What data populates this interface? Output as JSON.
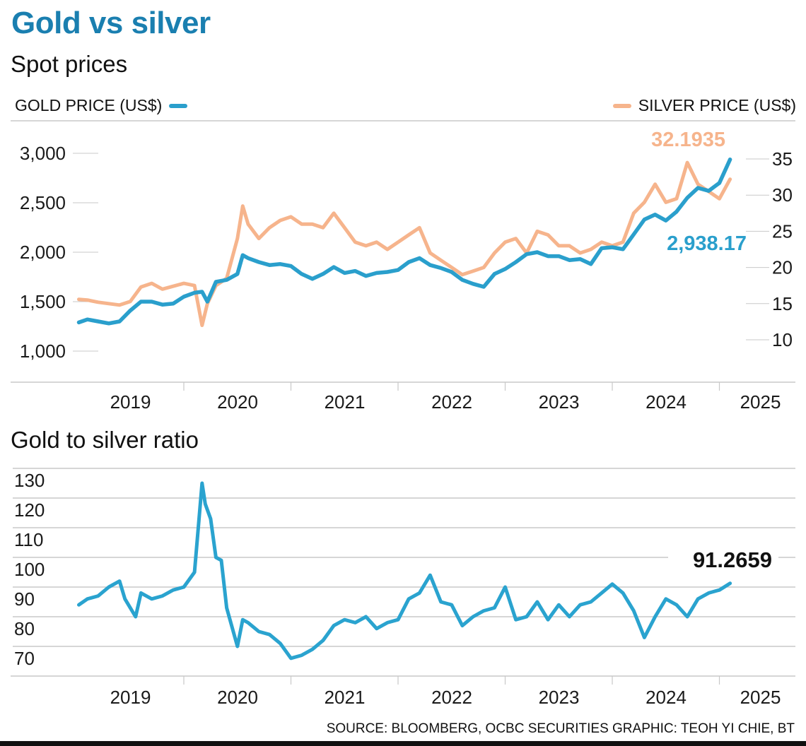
{
  "header": {
    "title": "Gold vs silver",
    "colors": {
      "title": "#1a7fb0",
      "gold": "#2a9fcc",
      "silver": "#f6b48c",
      "ratio": "#2aa3cf"
    }
  },
  "chart_data": [
    {
      "type": "line",
      "title": "Spot prices",
      "legend": [
        {
          "name": "GOLD PRICE (US$)",
          "axis": "left",
          "color": "#2a9fcc",
          "position": "top-left"
        },
        {
          "name": "SILVER PRICE (US$)",
          "axis": "right",
          "color": "#f6b48c",
          "position": "top-right"
        }
      ],
      "x_tick_labels": [
        "2019",
        "2020",
        "2021",
        "2022",
        "2023",
        "2024",
        "2025"
      ],
      "xlim": [
        2019.0,
        2025.2
      ],
      "y_left": {
        "label": "GOLD PRICE (US$)",
        "ticks": [
          1000,
          1500,
          2000,
          2500,
          3000
        ],
        "tick_labels": [
          "1,000",
          "1,500",
          "2,000",
          "2,500",
          "3,000"
        ],
        "ylim": [
          900,
          3100
        ]
      },
      "y_right": {
        "label": "SILVER PRICE (US$)",
        "ticks": [
          10,
          15,
          20,
          25,
          30,
          35
        ],
        "tick_labels": [
          "10",
          "15",
          "20",
          "25",
          "30",
          "35"
        ],
        "ylim": [
          8,
          37
        ]
      },
      "annotations": [
        {
          "text": "32.1935",
          "series": "SILVER PRICE (US$)"
        },
        {
          "text": "2,938.17",
          "series": "GOLD PRICE (US$)"
        }
      ],
      "x": [
        2019.02,
        2019.1,
        2019.2,
        2019.3,
        2019.4,
        2019.5,
        2019.6,
        2019.7,
        2019.8,
        2019.9,
        2020.0,
        2020.1,
        2020.17,
        2020.22,
        2020.3,
        2020.4,
        2020.5,
        2020.55,
        2020.6,
        2020.7,
        2020.8,
        2020.9,
        2021.0,
        2021.1,
        2021.2,
        2021.3,
        2021.4,
        2021.5,
        2021.6,
        2021.7,
        2021.8,
        2021.9,
        2022.0,
        2022.1,
        2022.2,
        2022.3,
        2022.4,
        2022.5,
        2022.6,
        2022.7,
        2022.8,
        2022.9,
        2023.0,
        2023.1,
        2023.2,
        2023.3,
        2023.4,
        2023.5,
        2023.6,
        2023.7,
        2023.8,
        2023.9,
        2024.0,
        2024.1,
        2024.2,
        2024.3,
        2024.4,
        2024.5,
        2024.6,
        2024.7,
        2024.8,
        2024.9,
        2025.0,
        2025.1
      ],
      "series": [
        {
          "name": "GOLD PRICE (US$)",
          "values": [
            1290,
            1320,
            1300,
            1280,
            1300,
            1410,
            1500,
            1500,
            1470,
            1480,
            1550,
            1590,
            1600,
            1500,
            1700,
            1720,
            1780,
            1970,
            1940,
            1900,
            1870,
            1880,
            1860,
            1780,
            1730,
            1780,
            1850,
            1790,
            1810,
            1760,
            1790,
            1800,
            1820,
            1900,
            1940,
            1870,
            1840,
            1800,
            1720,
            1680,
            1650,
            1780,
            1830,
            1900,
            1980,
            2000,
            1960,
            1960,
            1920,
            1930,
            1880,
            2040,
            2050,
            2030,
            2180,
            2330,
            2380,
            2320,
            2410,
            2550,
            2650,
            2620,
            2700,
            2938.17
          ]
        },
        {
          "name": "SILVER PRICE (US$)",
          "values": [
            15.6,
            15.5,
            15.2,
            15.0,
            14.8,
            15.3,
            17.3,
            17.8,
            17.0,
            17.4,
            17.8,
            17.5,
            12.0,
            15.0,
            17.5,
            18.5,
            24.0,
            28.5,
            26.0,
            24.0,
            25.5,
            26.5,
            27.0,
            26.0,
            26.0,
            25.5,
            27.5,
            25.5,
            23.5,
            23.0,
            23.5,
            22.5,
            23.5,
            24.5,
            25.5,
            22.0,
            21.0,
            20.0,
            19.0,
            19.5,
            20.0,
            22.0,
            23.5,
            24.0,
            22.0,
            25.0,
            24.5,
            23.0,
            23.0,
            22.0,
            22.5,
            23.5,
            23.0,
            23.5,
            27.5,
            29.0,
            31.5,
            29.0,
            29.5,
            34.5,
            31.5,
            30.5,
            29.5,
            32.1935
          ]
        }
      ]
    },
    {
      "type": "line",
      "title": "Gold to silver ratio",
      "x_tick_labels": [
        "2019",
        "2020",
        "2021",
        "2022",
        "2023",
        "2024",
        "2025"
      ],
      "xlim": [
        2019.0,
        2025.2
      ],
      "y": {
        "ticks": [
          70,
          80,
          90,
          100,
          110,
          120,
          130
        ],
        "tick_labels": [
          "70",
          "80",
          "90",
          "100",
          "110",
          "120",
          "130"
        ],
        "ylim": [
          60,
          134
        ]
      },
      "annotations": [
        {
          "text": "91.2659",
          "series": "Gold to silver ratio"
        }
      ],
      "x": [
        2019.02,
        2019.1,
        2019.2,
        2019.3,
        2019.4,
        2019.45,
        2019.55,
        2019.6,
        2019.7,
        2019.8,
        2019.9,
        2020.0,
        2020.1,
        2020.17,
        2020.2,
        2020.25,
        2020.3,
        2020.35,
        2020.4,
        2020.5,
        2020.55,
        2020.6,
        2020.7,
        2020.8,
        2020.9,
        2021.0,
        2021.1,
        2021.2,
        2021.3,
        2021.4,
        2021.5,
        2021.6,
        2021.7,
        2021.8,
        2021.9,
        2022.0,
        2022.1,
        2022.2,
        2022.3,
        2022.4,
        2022.5,
        2022.6,
        2022.7,
        2022.8,
        2022.9,
        2023.0,
        2023.1,
        2023.2,
        2023.3,
        2023.4,
        2023.5,
        2023.6,
        2023.7,
        2023.8,
        2023.9,
        2024.0,
        2024.1,
        2024.2,
        2024.3,
        2024.4,
        2024.5,
        2024.6,
        2024.7,
        2024.8,
        2024.9,
        2025.0,
        2025.1
      ],
      "series": [
        {
          "name": "Gold to silver ratio",
          "values": [
            84,
            86,
            87,
            90,
            92,
            86,
            80,
            88,
            86,
            87,
            89,
            90,
            95,
            125,
            118,
            113,
            100,
            99,
            83,
            70,
            79,
            78,
            75,
            74,
            71,
            66,
            67,
            69,
            72,
            77,
            79,
            78,
            80,
            76,
            78,
            79,
            86,
            88,
            94,
            85,
            84,
            77,
            80,
            82,
            83,
            90,
            79,
            80,
            85,
            79,
            84,
            80,
            84,
            85,
            88,
            91,
            88,
            82,
            73,
            80,
            86,
            84,
            80,
            86,
            88,
            89,
            91.2659
          ]
        }
      ]
    }
  ],
  "footer": {
    "source": "SOURCE: BLOOMBERG, OCBC SECURITIES   GRAPHIC: TEOH YI CHIE, BT"
  }
}
